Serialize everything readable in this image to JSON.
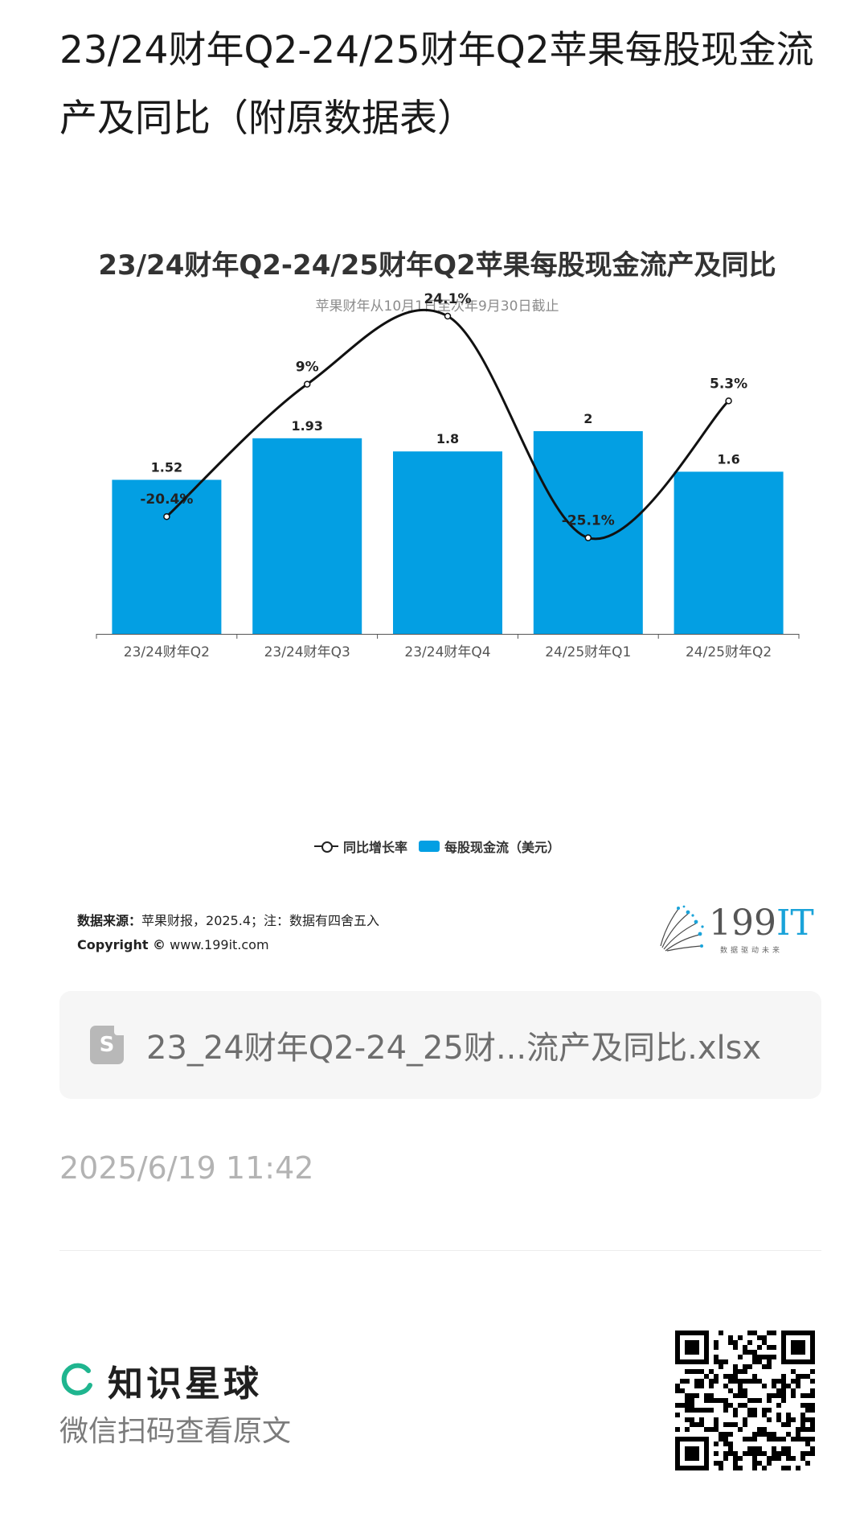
{
  "post": {
    "title": "23/24财年Q2-24/25财年Q2苹果每股现金流产及同比（附原数据表）"
  },
  "chart": {
    "title": "23/24财年Q2-24/25财年Q2苹果每股现金流产及同比",
    "subtitle": "苹果财年从10月1日至次年9月30日截止",
    "legend_line": "同比增长率",
    "legend_bar": "每股现金流（美元）",
    "source_label": "数据来源：",
    "source_text": "苹果财报，2025.4；注：数据有四舍五入",
    "copyright_label": "Copyright ©",
    "copyright_text": "www.199it.com",
    "brand_number": "199",
    "brand_it": "IT",
    "brand_tagline": "数据驱动未来"
  },
  "chart_data": {
    "type": "bar",
    "title": "23/24财年Q2-24/25财年Q2苹果每股现金流产及同比",
    "subtitle": "苹果财年从10月1日至次年9月30日截止",
    "categories": [
      "23/24财年Q2",
      "23/24财年Q3",
      "23/24财年Q4",
      "24/25财年Q1",
      "24/25财年Q2"
    ],
    "series": [
      {
        "name": "每股现金流（美元）",
        "type": "bar",
        "values": [
          1.52,
          1.93,
          1.8,
          2,
          1.6
        ],
        "labels": [
          "1.52",
          "1.93",
          "1.8",
          "2",
          "1.6"
        ],
        "color": "#039fe3"
      },
      {
        "name": "同比增长率",
        "type": "line",
        "values": [
          -20.4,
          9,
          24.1,
          -25.1,
          5.3
        ],
        "labels": [
          "-20.4%",
          "9%",
          "24.1%",
          "-25.1%",
          "5.3%"
        ],
        "color": "#111111"
      }
    ],
    "legend_position": "bottom",
    "grid": false
  },
  "attachment": {
    "icon": "spreadsheet-file-icon",
    "glyph": "S",
    "file_name": "23_24财年Q2-24_25财...流产及同比.xlsx"
  },
  "meta": {
    "timestamp": "2025/6/19 11:42"
  },
  "footer": {
    "app_name": "知识星球",
    "scan_hint": "微信扫码查看原文"
  },
  "colors": {
    "bar": "#039fe3",
    "line": "#111111",
    "brand_accent": "#1aa3d9",
    "planet_green": "#1fb58f"
  }
}
